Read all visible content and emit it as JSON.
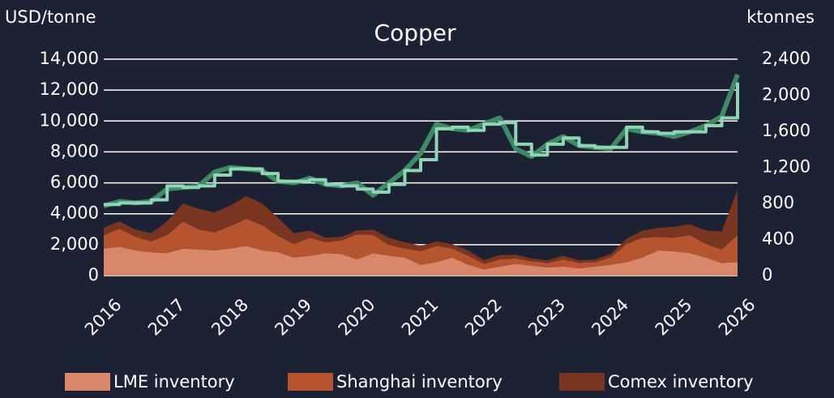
{
  "chart_data": {
    "type": "area-line",
    "title": "Copper",
    "y_label": "USD/tonne",
    "y2_label": "ktonnes",
    "x": [
      2016,
      2016.25,
      2016.5,
      2016.75,
      2017,
      2017.25,
      2017.5,
      2017.75,
      2018,
      2018.25,
      2018.5,
      2018.75,
      2019,
      2019.25,
      2019.5,
      2019.75,
      2020,
      2020.25,
      2020.5,
      2020.75,
      2021,
      2021.25,
      2021.5,
      2021.75,
      2022,
      2022.25,
      2022.5,
      2022.75,
      2023,
      2023.25,
      2023.5,
      2023.75,
      2024,
      2024.25,
      2024.5,
      2024.75,
      2025,
      2025.25,
      2025.5,
      2025.75,
      2026
    ],
    "xlim": [
      2016,
      2026
    ],
    "xticks": [
      2016,
      2017,
      2018,
      2019,
      2020,
      2021,
      2022,
      2023,
      2024,
      2025,
      2026
    ],
    "ylim": [
      0,
      14000
    ],
    "yticks": [
      0,
      {
        "value": 2000,
        "label": "2,000"
      },
      {
        "value": 4000,
        "label": "4,000"
      },
      {
        "value": 6000,
        "label": "6,000"
      },
      {
        "value": 8000,
        "label": "8,000"
      },
      {
        "value": 10000,
        "label": "10,000"
      },
      {
        "value": 12000,
        "label": "12,000"
      },
      {
        "value": 14000,
        "label": "14,000"
      }
    ],
    "y2lim": [
      0,
      2400
    ],
    "y2ticks": [
      0,
      400,
      800,
      {
        "value": 1200,
        "label": "1,200"
      },
      {
        "value": 1600,
        "label": "1,600"
      },
      {
        "value": 2000,
        "label": "2,000"
      },
      {
        "value": 2400,
        "label": "2,400"
      }
    ],
    "grid": true,
    "legend": "bottom",
    "series": [
      {
        "name": "LME inventory",
        "color": "#d9876a",
        "axis": "y2",
        "stacked": true,
        "values": [
          300,
          320,
          280,
          260,
          250,
          300,
          290,
          280,
          300,
          330,
          280,
          260,
          200,
          220,
          250,
          240,
          180,
          250,
          220,
          200,
          120,
          150,
          200,
          120,
          70,
          100,
          130,
          110,
          90,
          100,
          80,
          100,
          120,
          150,
          200,
          280,
          270,
          250,
          200,
          140,
          150
        ]
      },
      {
        "name": "Shanghai inventory",
        "color": "#b5542e",
        "axis": "y2",
        "stacked": true,
        "values": [
          150,
          200,
          150,
          120,
          200,
          300,
          220,
          200,
          250,
          300,
          280,
          180,
          150,
          200,
          120,
          150,
          280,
          200,
          120,
          100,
          150,
          180,
          100,
          100,
          60,
          80,
          60,
          50,
          50,
          80,
          60,
          50,
          80,
          200,
          220,
          150,
          150,
          200,
          150,
          150,
          300
        ]
      },
      {
        "name": "Comex inventory",
        "color": "#7a3520",
        "axis": "y2",
        "stacked": true,
        "values": [
          80,
          80,
          80,
          90,
          150,
          200,
          230,
          220,
          230,
          250,
          240,
          200,
          120,
          80,
          50,
          40,
          40,
          60,
          80,
          70,
          60,
          50,
          50,
          60,
          40,
          50,
          40,
          30,
          30,
          40,
          30,
          30,
          40,
          60,
          80,
          100,
          120,
          120,
          150,
          200,
          500
        ]
      },
      {
        "color": "#3d8a64",
        "axis": "y",
        "values": [
          4500,
          4800,
          4700,
          4800,
          5600,
          5700,
          5800,
          6700,
          7000,
          6900,
          6800,
          6100,
          6000,
          6300,
          5900,
          5800,
          6000,
          5200,
          6000,
          6800,
          7900,
          9800,
          9500,
          9400,
          9800,
          10200,
          8200,
          7700,
          8500,
          9000,
          8400,
          8300,
          8200,
          9500,
          9300,
          9200,
          9000,
          9300,
          9700,
          10300,
          13000
        ]
      },
      {
        "color": "#8fd4b4",
        "axis": "y",
        "step": true,
        "values": [
          4600,
          4700,
          4700,
          4900,
          5800,
          5700,
          5800,
          6500,
          6900,
          6900,
          6600,
          6100,
          6100,
          6200,
          5900,
          5800,
          5600,
          5400,
          5900,
          6800,
          7500,
          9500,
          9600,
          9400,
          9800,
          9900,
          8500,
          7800,
          8500,
          8900,
          8400,
          8300,
          8300,
          9600,
          9300,
          9200,
          9300,
          9300,
          9700,
          10200,
          12500
        ]
      }
    ]
  }
}
